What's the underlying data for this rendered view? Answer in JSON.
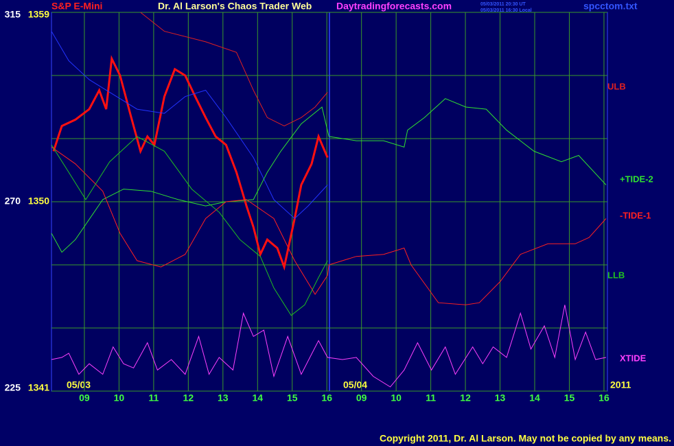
{
  "chart_data": {
    "type": "line",
    "header": {
      "symbol": "S&P E-Mini",
      "title": "Dr. Al Larson's Chaos Trader Web",
      "site": "Daytradingforecasts.com",
      "time_ut": "05/03/2011 20:30 UT",
      "time_local": "05/03/2011 16:30 Local",
      "file": "spcctom.txt"
    },
    "annotations": {
      "day1": "05/03",
      "day2": "05/04",
      "year": "2011"
    },
    "copyright": "Copyright 2011, Dr. Al Larson. May not be copied by any means.",
    "xlim": [
      -0.95,
      15.1
    ],
    "xticks": [
      {
        "value": 0,
        "label": "09"
      },
      {
        "value": 1,
        "label": "10"
      },
      {
        "value": 2,
        "label": "11"
      },
      {
        "value": 3,
        "label": "12"
      },
      {
        "value": 4,
        "label": "13"
      },
      {
        "value": 5,
        "label": "14"
      },
      {
        "value": 6,
        "label": "15"
      },
      {
        "value": 7,
        "label": "16"
      },
      {
        "value": 8,
        "label": "09"
      },
      {
        "value": 9,
        "label": "10"
      },
      {
        "value": 10,
        "label": "11"
      },
      {
        "value": 11,
        "label": "12"
      },
      {
        "value": 12,
        "label": "13"
      },
      {
        "value": 13,
        "label": "14"
      },
      {
        "value": 14,
        "label": "15"
      },
      {
        "value": 15,
        "label": "16"
      }
    ],
    "ylim": [
      1341,
      1359
    ],
    "yticks": [
      1341,
      1350,
      1359
    ],
    "ygrid": [
      1344,
      1347,
      1353,
      1356
    ],
    "y2lim": [
      225,
      315
    ],
    "y2ticks": [
      225,
      270,
      315
    ],
    "grid": true,
    "series": [
      {
        "color": "#ff1010",
        "width": 3,
        "x": [
          -0.89,
          -0.65,
          -0.26,
          0.14,
          0.43,
          0.63,
          0.79,
          1.03,
          1.32,
          1.62,
          1.82,
          2.02,
          2.31,
          2.61,
          2.91,
          3.2,
          3.5,
          3.79,
          4.09,
          4.39,
          4.68,
          4.88,
          5.08,
          5.28,
          5.57,
          5.77,
          6.07,
          6.26,
          6.56,
          6.76,
          7.02
        ],
        "values": [
          1352.4,
          1353.6,
          1353.9,
          1354.4,
          1355.3,
          1354.4,
          1356.8,
          1356.0,
          1354.2,
          1352.4,
          1353.1,
          1352.7,
          1355.0,
          1356.3,
          1356.0,
          1355.0,
          1354.0,
          1353.1,
          1352.7,
          1351.4,
          1349.8,
          1348.8,
          1347.5,
          1348.2,
          1347.8,
          1346.9,
          1349.2,
          1350.8,
          1351.8,
          1353.1,
          1352.1
        ]
      },
      {
        "color": "#2233ff",
        "width": 1,
        "x": [
          -0.95,
          -0.45,
          0.14,
          0.93,
          1.52,
          2.31,
          2.91,
          3.5,
          4.09,
          4.88,
          5.47,
          6.07,
          6.46,
          7.02
        ],
        "values": [
          1358.1,
          1356.7,
          1355.8,
          1355.0,
          1354.4,
          1354.2,
          1355.0,
          1355.3,
          1354.0,
          1352.1,
          1350.1,
          1349.2,
          1349.8,
          1350.8
        ]
      },
      {
        "name": "ULB",
        "color": "#e02020",
        "width": 1,
        "x": [
          1.62,
          2.31,
          3.5,
          4.39,
          4.88,
          5.28,
          5.77,
          6.26,
          6.66,
          7.02
        ],
        "values": [
          1359.0,
          1358.1,
          1357.6,
          1357.1,
          1355.3,
          1354.0,
          1353.6,
          1354.0,
          1354.5,
          1355.2
        ]
      },
      {
        "name": "+TIDE-2",
        "color": "#30e030",
        "width": 1,
        "x": [
          -0.95,
          -0.65,
          -0.26,
          0.53,
          1.13,
          1.92,
          2.71,
          3.5,
          4.09,
          4.88,
          5.28,
          5.67,
          6.26,
          6.86,
          7.06,
          7.85,
          8.64,
          9.23,
          9.33,
          9.82,
          10.42,
          11.01,
          11.6,
          12.19,
          12.98,
          13.77,
          14.27,
          15.06
        ],
        "values": [
          1348.5,
          1347.6,
          1348.2,
          1350.1,
          1350.6,
          1350.5,
          1350.1,
          1349.8,
          1350.0,
          1350.1,
          1351.4,
          1352.4,
          1353.7,
          1354.5,
          1353.1,
          1352.9,
          1352.9,
          1352.6,
          1353.4,
          1354.0,
          1354.9,
          1354.5,
          1354.4,
          1353.4,
          1352.4,
          1351.9,
          1352.2,
          1350.8
        ]
      },
      {
        "name": "-TIDE-1",
        "color": "#ff2020",
        "width": 1,
        "x": [
          -0.95,
          -0.26,
          0.53,
          1.03,
          1.52,
          2.21,
          2.91,
          3.5,
          4.09,
          4.68,
          5.47,
          6.07,
          6.66,
          7.02,
          7.06,
          7.85,
          8.64,
          9.23,
          9.43,
          10.22,
          11.01,
          11.4,
          12.0,
          12.59,
          13.38,
          14.17,
          14.57,
          15.06
        ],
        "values": [
          1352.6,
          1351.8,
          1350.5,
          1348.5,
          1347.2,
          1346.9,
          1347.5,
          1349.2,
          1350.0,
          1350.1,
          1349.2,
          1347.2,
          1345.6,
          1346.5,
          1347.0,
          1347.4,
          1347.5,
          1347.8,
          1347.0,
          1345.2,
          1345.1,
          1345.2,
          1346.2,
          1347.5,
          1348.0,
          1348.0,
          1348.3,
          1349.2
        ]
      },
      {
        "name": "LLB",
        "color": "#20c020",
        "width": 1,
        "x": [
          -0.95,
          -0.45,
          0.04,
          0.73,
          1.52,
          2.31,
          3.1,
          3.89,
          4.49,
          5.08,
          5.47,
          5.97,
          6.36,
          6.76,
          7.02
        ],
        "values": [
          1352.7,
          1351.4,
          1350.1,
          1351.9,
          1353.1,
          1352.4,
          1350.6,
          1349.5,
          1348.2,
          1347.4,
          1345.9,
          1344.6,
          1345.1,
          1346.4,
          1347.2
        ]
      },
      {
        "name": "XTIDE",
        "color": "#ff40ff",
        "width": 1,
        "x": [
          -0.95,
          -0.65,
          -0.45,
          -0.16,
          0.14,
          0.53,
          0.83,
          1.13,
          1.42,
          1.82,
          2.11,
          2.51,
          2.91,
          3.3,
          3.6,
          3.89,
          4.29,
          4.59,
          4.88,
          5.18,
          5.47,
          5.87,
          6.26,
          6.76,
          7.02,
          7.45,
          7.85,
          8.34,
          8.83,
          9.23,
          9.62,
          10.02,
          10.42,
          10.71,
          11.21,
          11.5,
          11.8,
          12.19,
          12.59,
          12.89,
          13.28,
          13.58,
          13.87,
          14.17,
          14.47,
          14.76,
          15.06
        ],
        "values": [
          1342.5,
          1342.6,
          1342.8,
          1341.8,
          1342.3,
          1341.8,
          1343.1,
          1342.3,
          1342.1,
          1343.3,
          1342.0,
          1342.5,
          1341.8,
          1343.6,
          1341.8,
          1342.6,
          1342.0,
          1344.7,
          1343.6,
          1343.9,
          1341.7,
          1343.6,
          1341.8,
          1343.4,
          1342.6,
          1342.5,
          1342.6,
          1341.7,
          1341.2,
          1342.0,
          1343.3,
          1342.0,
          1343.1,
          1341.8,
          1343.1,
          1342.3,
          1343.1,
          1342.6,
          1344.7,
          1343.0,
          1344.1,
          1342.6,
          1345.1,
          1342.5,
          1343.8,
          1342.5,
          1342.6
        ]
      }
    ]
  }
}
